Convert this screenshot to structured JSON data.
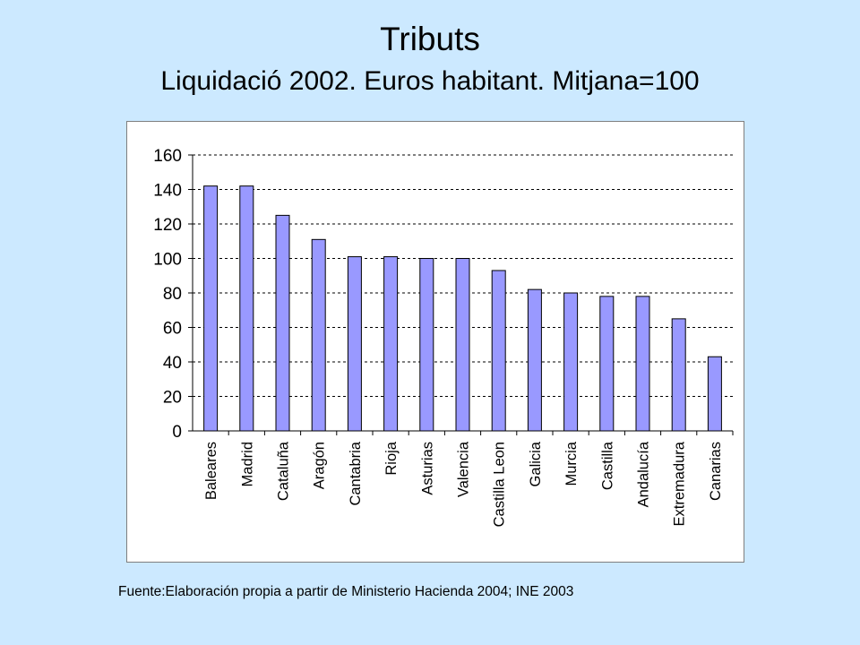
{
  "title": "Tributs",
  "subtitle": "Liquidació 2002. Euros habitant. Mitjana=100",
  "source": "Fuente:Elaboración propia a partir de Ministerio Hacienda 2004; INE 2003",
  "colors": {
    "background": "#cce9ff",
    "bar_fill": "#9999ff",
    "bar_stroke": "#000000",
    "plot_bg": "#ffffff"
  },
  "chart_data": {
    "type": "bar",
    "title": "",
    "xlabel": "",
    "ylabel": "",
    "ylim": [
      0,
      160
    ],
    "yticks": [
      0,
      20,
      40,
      60,
      80,
      100,
      120,
      140,
      160
    ],
    "grid": true,
    "legend": "none",
    "categories": [
      "Baleares",
      "Madrid",
      "Cataluña",
      "Aragón",
      "Cantabria",
      "Rioja",
      "Asturias",
      "Valencia",
      "Castilla Leon",
      "Galicia",
      "Murcia",
      "Castilla",
      "Andalucía",
      "Extremadura",
      "Canarias"
    ],
    "values": [
      142,
      142,
      125,
      111,
      101,
      101,
      100,
      100,
      93,
      82,
      80,
      78,
      78,
      65,
      43
    ]
  }
}
